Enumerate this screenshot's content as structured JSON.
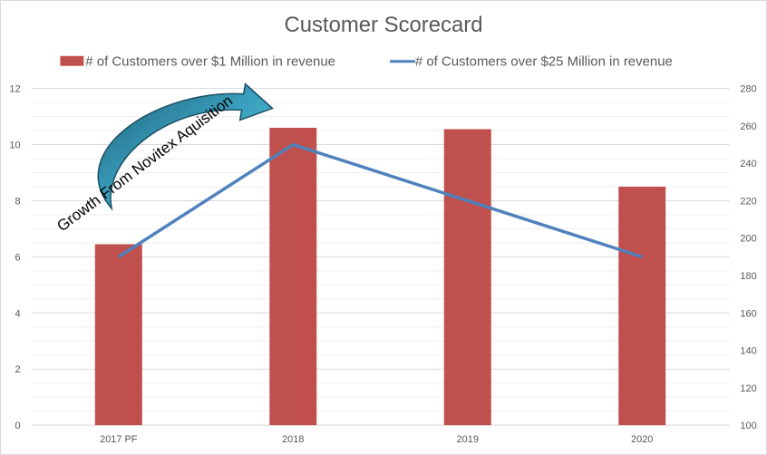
{
  "chart_data": {
    "type": "bar",
    "title": "Customer Scorecard",
    "categories": [
      "2017 PF",
      "2018",
      "2019",
      "2020"
    ],
    "series": [
      {
        "name": "# of Customers over $1 Million in revenue",
        "type": "bar",
        "axis": "left",
        "color": "#c0504d",
        "values": [
          6.45,
          10.6,
          10.55,
          8.5
        ]
      },
      {
        "name": "# of Customers over $25 Million in revenue",
        "type": "line",
        "axis": "right",
        "color": "#4f81bd",
        "values": [
          190,
          250,
          220,
          190
        ]
      }
    ],
    "y_left": {
      "min": 0,
      "max": 12,
      "ticks": [
        "0",
        "2",
        "4",
        "6",
        "8",
        "10",
        "12"
      ]
    },
    "y_right": {
      "min": 100,
      "max": 280,
      "ticks": [
        "100",
        "120",
        "140",
        "160",
        "180",
        "200",
        "220",
        "240",
        "260",
        "280"
      ]
    },
    "grid": true,
    "legend_position": "top",
    "annotation": "Growth From Novitex  Aquisition"
  }
}
